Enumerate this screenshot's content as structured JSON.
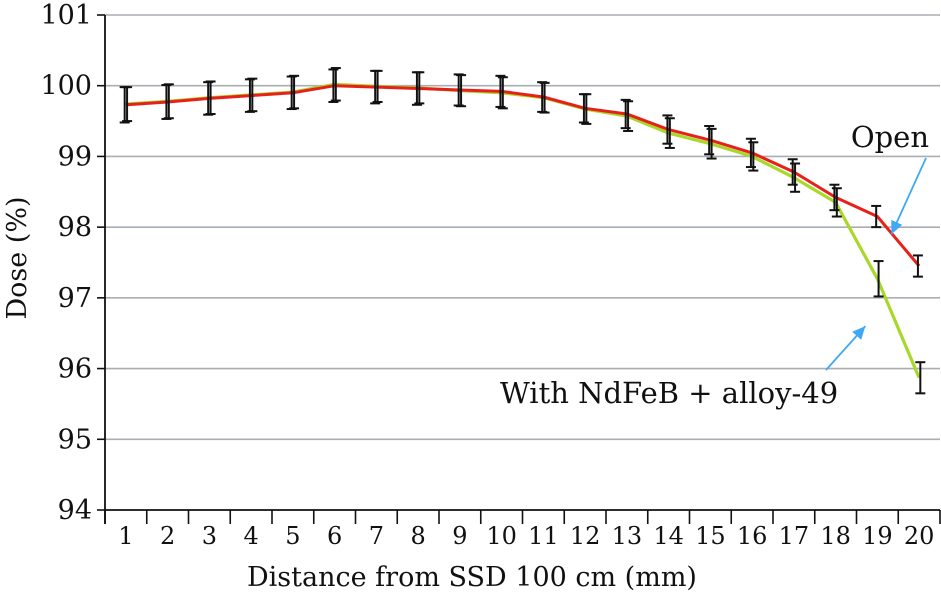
{
  "chart_data": {
    "type": "line",
    "xlabel": "Distance from SSD 100 cm (mm)",
    "ylabel": "Dose (%)",
    "categories": [
      "1",
      "2",
      "3",
      "4",
      "5",
      "6",
      "7",
      "8",
      "9",
      "10",
      "11",
      "12",
      "13",
      "14",
      "15",
      "16",
      "17",
      "18",
      "19",
      "20"
    ],
    "ylim": [
      94,
      101
    ],
    "yticks": [
      "94",
      "95",
      "96",
      "97",
      "98",
      "99",
      "100",
      "101"
    ],
    "grid": "horizontal",
    "series": [
      {
        "name": "Open",
        "color": "#e8201a",
        "values": [
          99.73,
          99.77,
          99.82,
          99.86,
          99.9,
          100.0,
          99.98,
          99.96,
          99.94,
          99.92,
          99.84,
          99.68,
          99.6,
          99.38,
          99.23,
          99.05,
          98.78,
          98.42,
          98.15,
          97.45
        ],
        "error": [
          0.25,
          0.24,
          0.23,
          0.23,
          0.23,
          0.23,
          0.23,
          0.23,
          0.22,
          0.22,
          0.21,
          0.2,
          0.2,
          0.2,
          0.2,
          0.2,
          0.18,
          0.18,
          0.15,
          0.15
        ]
      },
      {
        "name": "With NdFeB + alloy-49",
        "color": "#a8d82a",
        "values": [
          99.74,
          99.78,
          99.83,
          99.87,
          99.91,
          100.02,
          99.99,
          99.97,
          99.93,
          99.9,
          99.83,
          99.67,
          99.57,
          99.33,
          99.18,
          99.0,
          98.7,
          98.35,
          97.27,
          95.87
        ],
        "error": [
          0.24,
          0.24,
          0.23,
          0.23,
          0.23,
          0.23,
          0.22,
          0.22,
          0.22,
          0.22,
          0.21,
          0.21,
          0.21,
          0.21,
          0.21,
          0.2,
          0.2,
          0.2,
          0.25,
          0.22
        ]
      }
    ],
    "annotations": [
      {
        "text": "Open",
        "target_series": "Open",
        "arrow_color": "#3fa9f5"
      },
      {
        "text": "With NdFeB + alloy-49",
        "target_series": "With NdFeB + alloy-49",
        "arrow_color": "#3fa9f5"
      }
    ],
    "colors": {
      "axis": "#111111",
      "grid": "#a9aeb3",
      "errorbar": "#111111"
    }
  }
}
